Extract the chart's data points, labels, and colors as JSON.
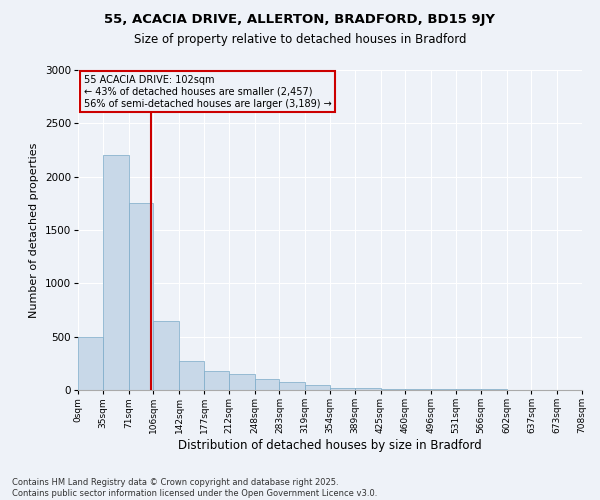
{
  "title1": "55, ACACIA DRIVE, ALLERTON, BRADFORD, BD15 9JY",
  "title2": "Size of property relative to detached houses in Bradford",
  "xlabel": "Distribution of detached houses by size in Bradford",
  "ylabel": "Number of detached properties",
  "footnote1": "Contains HM Land Registry data © Crown copyright and database right 2025.",
  "footnote2": "Contains public sector information licensed under the Open Government Licence v3.0.",
  "annotation_line1": "55 ACACIA DRIVE: 102sqm",
  "annotation_line2": "← 43% of detached houses are smaller (2,457)",
  "annotation_line3": "56% of semi-detached houses are larger (3,189) →",
  "property_sqm": 102,
  "bin_edges": [
    0,
    35,
    71,
    106,
    142,
    177,
    212,
    248,
    283,
    319,
    354,
    389,
    425,
    460,
    496,
    531,
    566,
    602,
    637,
    673,
    708
  ],
  "bin_labels": [
    "0sqm",
    "35sqm",
    "71sqm",
    "106sqm",
    "142sqm",
    "177sqm",
    "212sqm",
    "248sqm",
    "283sqm",
    "319sqm",
    "354sqm",
    "389sqm",
    "425sqm",
    "460sqm",
    "496sqm",
    "531sqm",
    "566sqm",
    "602sqm",
    "637sqm",
    "673sqm",
    "708sqm"
  ],
  "bar_values": [
    500,
    2200,
    1750,
    650,
    275,
    175,
    150,
    100,
    75,
    50,
    20,
    15,
    10,
    10,
    8,
    5,
    5,
    3,
    2,
    2
  ],
  "bar_color": "#c8d8e8",
  "bar_edge_color": "#7aaac8",
  "bg_color": "#eef2f8",
  "grid_color": "#ffffff",
  "vline_color": "#cc0000",
  "annotation_box_color": "#cc0000",
  "ylim": [
    0,
    3000
  ],
  "yticks": [
    0,
    500,
    1000,
    1500,
    2000,
    2500,
    3000
  ]
}
